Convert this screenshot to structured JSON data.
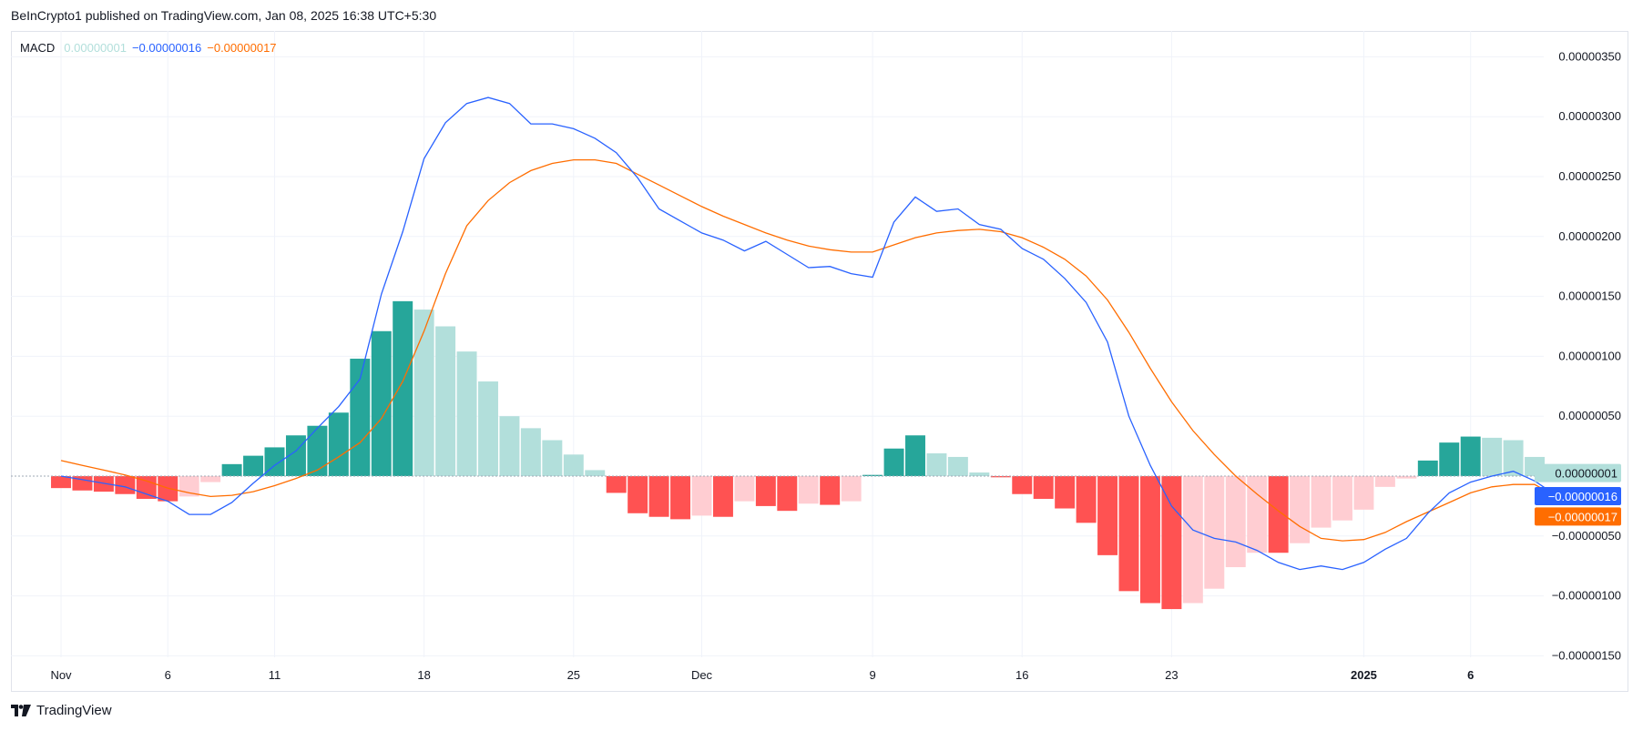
{
  "header": {
    "published": "BeInCrypto1 published on TradingView.com, Jan 08, 2025 16:38 UTC+5:30"
  },
  "legend": {
    "name": "MACD",
    "histogram": "0.00000001",
    "macd": "−0.00000016",
    "signal": "−0.00000017"
  },
  "footer": {
    "brand": "TradingView"
  },
  "colors": {
    "macd_line": "#2962ff",
    "signal_line": "#ff6d00",
    "hist_pos_strong": "#26a69a",
    "hist_pos_weak": "#b2dfdb",
    "hist_neg_strong": "#ff5252",
    "hist_neg_weak": "#ffcdd2"
  },
  "chart_data": {
    "type": "bar+line",
    "title": "MACD",
    "unit_note": "values in units of 1e-8",
    "ylim": [
      -150,
      350
    ],
    "y_ticks": [
      350,
      300,
      250,
      200,
      150,
      100,
      50,
      -50,
      -100,
      -150
    ],
    "y_tick_labels": [
      "0.00000350",
      "0.00000300",
      "0.00000250",
      "0.00000200",
      "0.00000150",
      "0.00000100",
      "0.00000050",
      "−0.00000050",
      "−0.00000100",
      "−0.00000150"
    ],
    "x_ticks": [
      {
        "index": 0,
        "label": "Nov",
        "bold": false
      },
      {
        "index": 5,
        "label": "6",
        "bold": false
      },
      {
        "index": 10,
        "label": "11",
        "bold": false
      },
      {
        "index": 17,
        "label": "18",
        "bold": false
      },
      {
        "index": 24,
        "label": "25",
        "bold": false
      },
      {
        "index": 30,
        "label": "Dec",
        "bold": false
      },
      {
        "index": 38,
        "label": "9",
        "bold": false
      },
      {
        "index": 45,
        "label": "16",
        "bold": false
      },
      {
        "index": 52,
        "label": "23",
        "bold": false
      },
      {
        "index": 61,
        "label": "2025",
        "bold": true
      },
      {
        "index": 66,
        "label": "6",
        "bold": true
      }
    ],
    "histogram": [
      -10,
      -12,
      -13,
      -15,
      -19,
      -21,
      -17,
      -5,
      10,
      17,
      24,
      34,
      42,
      53,
      98,
      121,
      146,
      139,
      125,
      104,
      79,
      50,
      40,
      30,
      18,
      5,
      -14,
      -31,
      -34,
      -36,
      -33,
      -34,
      -21,
      -25,
      -29,
      -23,
      -24,
      -21,
      1,
      23,
      34,
      19,
      16,
      3,
      -1,
      -15,
      -19,
      -27,
      -39,
      -66,
      -96,
      -106,
      -111,
      -106,
      -94,
      -76,
      -64,
      -64,
      -56,
      -43,
      -37,
      -28,
      -9,
      -2,
      13,
      28,
      33,
      32,
      30,
      16,
      1
    ],
    "macd": [
      0,
      -3,
      -6,
      -9,
      -15,
      -21,
      -32,
      -32,
      -22,
      -6,
      9,
      21,
      40,
      58,
      81,
      152,
      204,
      265,
      295,
      311,
      316,
      311,
      294,
      294,
      290,
      282,
      270,
      249,
      223,
      213,
      203,
      197,
      188,
      196,
      185,
      174,
      175,
      169,
      166,
      212,
      233,
      221,
      223,
      210,
      206,
      190,
      181,
      165,
      145,
      112,
      50,
      9,
      -25,
      -45,
      -52,
      -55,
      -62,
      -72,
      -78,
      -75,
      -78,
      -72,
      -61,
      -52,
      -31,
      -14,
      -5,
      0,
      4,
      -4,
      -16
    ],
    "signal": [
      13,
      9,
      5,
      1,
      -4,
      -10,
      -14,
      -17,
      -16,
      -13,
      -8,
      -2,
      5,
      16,
      28,
      48,
      79,
      121,
      169,
      209,
      230,
      245,
      255,
      261,
      264,
      264,
      261,
      252,
      243,
      234,
      225,
      217,
      210,
      203,
      197,
      192,
      189,
      187,
      187,
      193,
      199,
      203,
      205,
      206,
      204,
      199,
      191,
      181,
      167,
      147,
      120,
      90,
      62,
      38,
      18,
      0,
      -15,
      -29,
      -42,
      -52,
      -54,
      -53,
      -47,
      -38,
      -30,
      -22,
      -14,
      -9,
      -7,
      -7,
      -17
    ]
  }
}
